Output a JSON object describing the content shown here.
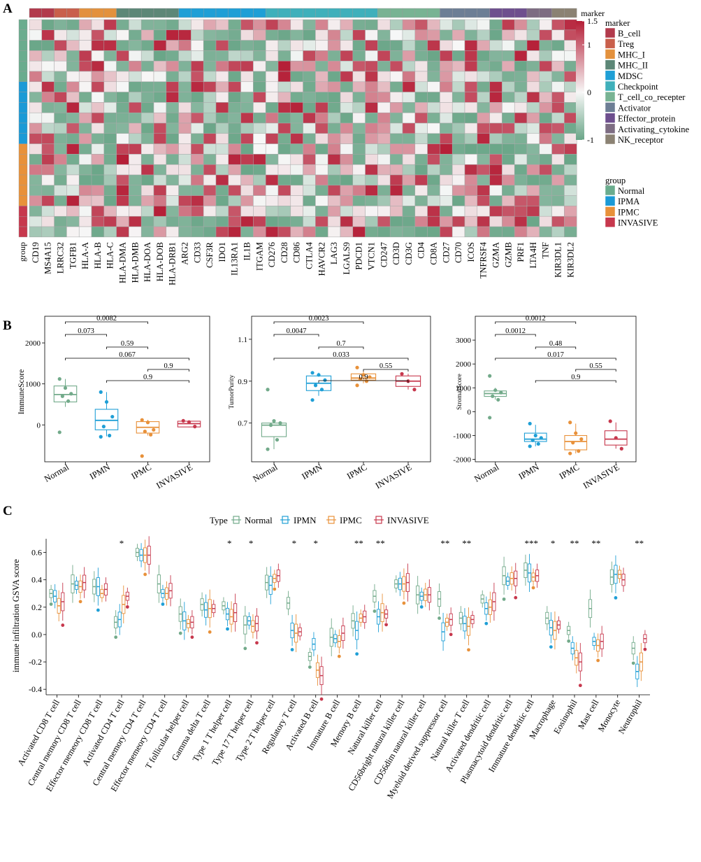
{
  "panel_labels": [
    "A",
    "B",
    "C"
  ],
  "chart_data": [
    {
      "type": "heatmap",
      "panel": "A",
      "genes": [
        "CD19",
        "MS4A15",
        "LRRC32",
        "TGFB1",
        "HLA-A",
        "HLA-B",
        "HLA-C",
        "HLA-DMA",
        "HLA-DMB",
        "HLA-DOA",
        "HLA-DOB",
        "HLA-DRB1",
        "ARG2",
        "CD33",
        "CSF3R",
        "IDO1",
        "IL13RA1",
        "IL1B",
        "ITGAM",
        "CD276",
        "CD28",
        "CD86",
        "CTLA4",
        "HAVCR2",
        "LAG3",
        "LGALS9",
        "PDCD1",
        "VTCN1",
        "CD247",
        "CD3D",
        "CD3G",
        "CD4",
        "CD8A",
        "CD27",
        "CD70",
        "ICOS",
        "TNFRSF4",
        "GZMA",
        "GZMB",
        "PRF1",
        "LTA4H",
        "TNF",
        "KIR3DL1",
        "KIR3DL2"
      ],
      "gene_marker": [
        0,
        0,
        1,
        1,
        2,
        2,
        2,
        3,
        3,
        3,
        3,
        3,
        4,
        4,
        4,
        4,
        4,
        4,
        4,
        5,
        5,
        5,
        5,
        5,
        5,
        5,
        5,
        5,
        6,
        6,
        6,
        6,
        6,
        7,
        7,
        7,
        7,
        8,
        8,
        8,
        9,
        9,
        10,
        10
      ],
      "sample_groups": [
        0,
        0,
        0,
        0,
        0,
        0,
        1,
        1,
        1,
        1,
        1,
        1,
        2,
        2,
        2,
        2,
        2,
        2,
        3,
        3,
        3
      ],
      "marker_title": "marker",
      "marker_legend": [
        "B_cell",
        "Treg",
        "MHC_I",
        "MHC_II",
        "MDSC",
        "Checkpoint",
        "T_cell_co_recepter",
        "Activator",
        "Effector_protein",
        "Activating_cytokine",
        "NK_receptor"
      ],
      "marker_colors": [
        "#b23a4c",
        "#c95f4b",
        "#e3913d",
        "#5d8777",
        "#1f9fd6",
        "#3fb0bb",
        "#78b393",
        "#6d7e95",
        "#6e4f8e",
        "#7d6c82",
        "#8b8273"
      ],
      "group_title": "group",
      "group_legend": [
        "Normal",
        "IPMA",
        "IPMC",
        "INVASIVE"
      ],
      "group_colors": [
        "#6aac8e",
        "#1b9ad6",
        "#e8913a",
        "#c7384d"
      ],
      "color_scale": {
        "min": -1,
        "max": 1.5,
        "ticks": [
          "1.5",
          "1",
          "0",
          "-1"
        ],
        "low": "#6aa688",
        "mid": "#f7f7f7",
        "high": "#b51f37"
      },
      "row_axis_label": "group",
      "column_axis_title": "marker"
    },
    {
      "type": "box",
      "panel": "B",
      "ylabel": "ImmuneScore",
      "categories": [
        "Normal",
        "IPMN",
        "IPMC",
        "INVASIVE"
      ],
      "ylim": [
        -900,
        2650
      ],
      "yticks": [
        0,
        1000,
        2000
      ],
      "ytick_labels": [
        "0",
        "1000",
        "2000"
      ],
      "boxes": [
        {
          "q1": 560,
          "median": 740,
          "q3": 950,
          "lo": 440,
          "hi": 1120,
          "points": [
            1120,
            900,
            760,
            700,
            580,
            -180
          ]
        },
        {
          "q1": -120,
          "median": 110,
          "q3": 380,
          "lo": -280,
          "hi": 800,
          "points": [
            800,
            560,
            200,
            -40,
            -260,
            -290
          ]
        },
        {
          "q1": -200,
          "median": -60,
          "q3": 80,
          "lo": -260,
          "hi": 120,
          "points": [
            120,
            60,
            -120,
            -160,
            -240,
            -760
          ]
        },
        {
          "q1": -50,
          "median": 30,
          "q3": 90,
          "lo": -60,
          "hi": 100,
          "points": [
            100,
            70,
            -40
          ]
        }
      ],
      "comparisons": [
        {
          "a": 0,
          "b": 2,
          "label": "0.0082"
        },
        {
          "a": 0,
          "b": 1,
          "label": "0.073"
        },
        {
          "a": 1,
          "b": 2,
          "label": "0.59"
        },
        {
          "a": 0,
          "b": 3,
          "label": "0.067"
        },
        {
          "a": 2,
          "b": 3,
          "label": "0.9"
        },
        {
          "a": 1,
          "b": 3,
          "label": "0.9"
        }
      ]
    },
    {
      "type": "box",
      "panel": "B",
      "ylabel": "TumorPurity",
      "categories": [
        "Normal",
        "IPMN",
        "IPMC",
        "INVASIVE"
      ],
      "ylim": [
        0.515,
        1.21
      ],
      "yticks": [
        0.7,
        0.9,
        1.1
      ],
      "ytick_labels": [
        "0.7",
        "0.9",
        "1.1"
      ],
      "boxes": [
        {
          "q1": 0.635,
          "median": 0.69,
          "q3": 0.7,
          "lo": 0.575,
          "hi": 0.71,
          "points": [
            0.86,
            0.71,
            0.7,
            0.69,
            0.62,
            0.575
          ]
        },
        {
          "q1": 0.855,
          "median": 0.89,
          "q3": 0.925,
          "lo": 0.83,
          "hi": 0.94,
          "points": [
            0.94,
            0.93,
            0.905,
            0.88,
            0.86,
            0.81
          ]
        },
        {
          "q1": 0.905,
          "median": 0.915,
          "q3": 0.935,
          "lo": 0.89,
          "hi": 0.95,
          "points": [
            0.965,
            0.93,
            0.92,
            0.91,
            0.9,
            0.88
          ]
        },
        {
          "q1": 0.875,
          "median": 0.9,
          "q3": 0.925,
          "lo": 0.86,
          "hi": 0.935,
          "points": [
            0.935,
            0.9,
            0.86
          ]
        }
      ],
      "comparisons": [
        {
          "a": 0,
          "b": 2,
          "label": "0.0023"
        },
        {
          "a": 0,
          "b": 1,
          "label": "0.0047"
        },
        {
          "a": 1,
          "b": 2,
          "label": "0.7"
        },
        {
          "a": 0,
          "b": 3,
          "label": "0.033"
        },
        {
          "a": 2,
          "b": 3,
          "label": "0.55"
        },
        {
          "a": 1,
          "b": 3,
          "label": "0.9"
        }
      ]
    },
    {
      "type": "box",
      "panel": "B",
      "ylabel": "StromalScore",
      "categories": [
        "Normal",
        "IPMN",
        "IPMC",
        "INVASIVE"
      ],
      "ylim": [
        -2100,
        4000
      ],
      "yticks": [
        -2000,
        -1000,
        0,
        1000,
        2000,
        3000
      ],
      "ytick_labels": [
        "-2000",
        "-1000",
        "0",
        "1000",
        "2000",
        "3000"
      ],
      "boxes": [
        {
          "q1": 640,
          "median": 760,
          "q3": 870,
          "lo": 500,
          "hi": 1000,
          "points": [
            1500,
            900,
            800,
            650,
            500,
            -250
          ]
        },
        {
          "q1": -1250,
          "median": -1150,
          "q3": -900,
          "lo": -1450,
          "hi": -550,
          "points": [
            -500,
            -1000,
            -1100,
            -1200,
            -1350,
            -1450
          ]
        },
        {
          "q1": -1600,
          "median": -1250,
          "q3": -1000,
          "lo": -1750,
          "hi": -500,
          "points": [
            -450,
            -900,
            -1150,
            -1300,
            -1650,
            -1750
          ]
        },
        {
          "q1": -1400,
          "median": -1150,
          "q3": -800,
          "lo": -1550,
          "hi": -450,
          "points": [
            -400,
            -1100,
            -1550
          ]
        }
      ],
      "comparisons": [
        {
          "a": 0,
          "b": 2,
          "label": "0.0012"
        },
        {
          "a": 0,
          "b": 1,
          "label": "0.0012"
        },
        {
          "a": 1,
          "b": 2,
          "label": "0.48"
        },
        {
          "a": 0,
          "b": 3,
          "label": "0.017"
        },
        {
          "a": 2,
          "b": 3,
          "label": "0.55"
        },
        {
          "a": 1,
          "b": 3,
          "label": "0.9"
        }
      ]
    },
    {
      "type": "box",
      "panel": "C",
      "legend_title": "Type",
      "legend": [
        "Normal",
        "IPMN",
        "IPMC",
        "INVASIVE"
      ],
      "series_colors": [
        "#72aa8a",
        "#1f9fd6",
        "#e8913a",
        "#c7384d"
      ],
      "ylabel": "immune infiltration GSVA score",
      "ylim": [
        -0.44,
        0.7
      ],
      "yticks": [
        -0.4,
        -0.2,
        0,
        0.2,
        0.4,
        0.6
      ],
      "ytick_labels": [
        "-0.4",
        "-0.2",
        "0.0",
        "0.2",
        "0.4",
        "0.6"
      ],
      "categories": [
        "Activated CD8 T cell",
        "Central memory CD8 T cell",
        "Effector memeory CD8 T cell",
        "Activated CD4 T cell",
        "Central memory CD4 T cell",
        "Effector memeory CD4 T cell",
        "T follicular helper cell",
        "Gamma delta T cell",
        "Type 1 T helper cell",
        "Type 17 T helper cell",
        "Type 2 T helper cell",
        "Regulatory T cell",
        "Activated B cell",
        "Immature  B cell",
        "Memory B cell",
        "Natural killer cell",
        "CD56bright natural killer cell",
        "CD56dim natural killer cell",
        "Myeloid derived suppressor cell",
        "Natural killer T cell",
        "Activated dendritic cell",
        "Plasmacytoid dendritic cell",
        "Immature dendritic cell",
        "Macrophage",
        "Eosinophil",
        "Mast cell",
        "Monocyte",
        "Neutrophil"
      ],
      "significance": [
        "",
        "",
        "",
        "*",
        "",
        "",
        "",
        "",
        "*",
        "*",
        "",
        "*",
        "*",
        "",
        "**",
        "**",
        "",
        "",
        "**",
        "**",
        "",
        "",
        "***",
        "*",
        "**",
        "**",
        "",
        "**"
      ],
      "medians": [
        [
          0.3,
          0.37,
          0.35,
          0.09,
          0.6,
          0.37,
          0.15,
          0.22,
          0.21,
          0.07,
          0.38,
          0.23,
          -0.16,
          -0.02,
          0.1,
          0.28,
          0.37,
          0.29,
          0.26,
          0.12,
          0.26,
          0.43,
          0.47,
          0.12,
          0.03,
          0.19,
          0.42,
          -0.1
        ],
        [
          0.28,
          0.36,
          0.35,
          0.11,
          0.58,
          0.3,
          0.1,
          0.18,
          0.15,
          0.1,
          0.36,
          0.03,
          -0.07,
          -0.03,
          0.03,
          0.13,
          0.37,
          0.28,
          0.02,
          0.08,
          0.19,
          0.39,
          0.45,
          0.05,
          -0.1,
          -0.05,
          0.44,
          -0.27
        ],
        [
          0.21,
          0.35,
          0.3,
          0.22,
          0.58,
          0.3,
          0.08,
          0.19,
          0.13,
          0.06,
          0.41,
          0.01,
          -0.26,
          -0.05,
          0.12,
          0.16,
          0.37,
          0.29,
          0.09,
          0.06,
          0.2,
          0.41,
          0.42,
          0.03,
          -0.17,
          -0.08,
          0.44,
          -0.2
        ],
        [
          0.24,
          0.38,
          0.33,
          0.28,
          0.58,
          0.32,
          0.09,
          0.19,
          0.16,
          0.08,
          0.43,
          0.02,
          -0.3,
          0.01,
          0.13,
          0.15,
          0.38,
          0.29,
          0.11,
          0.11,
          0.24,
          0.41,
          0.43,
          0.07,
          -0.2,
          -0.05,
          0.4,
          -0.03
        ]
      ]
    }
  ]
}
